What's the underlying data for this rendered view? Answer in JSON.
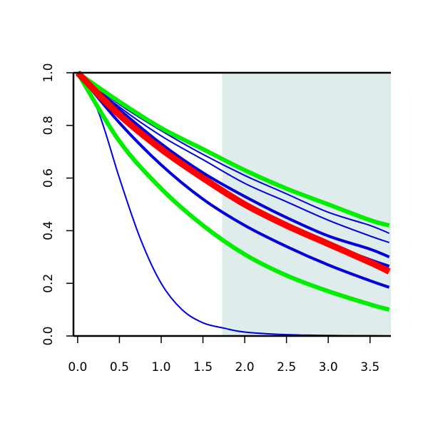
{
  "chart_data": {
    "type": "line",
    "title": "",
    "xlabel": "",
    "ylabel": "",
    "xlim": [
      -0.05,
      3.75
    ],
    "ylim": [
      0.0,
      1.0
    ],
    "x_ticks": [
      0.0,
      0.5,
      1.0,
      1.5,
      2.0,
      2.5,
      3.0,
      3.5
    ],
    "x_tick_labels": [
      "0.0",
      "0.5",
      "1.0",
      "1.5",
      "2.0",
      "2.5",
      "3.0",
      "3.5"
    ],
    "y_ticks": [
      0.0,
      0.2,
      0.4,
      0.6,
      0.8,
      1.0
    ],
    "y_tick_labels": [
      "0.0",
      "0.2",
      "0.4",
      "0.6",
      "0.8",
      "1.0"
    ],
    "shaded_region": {
      "x_start": 1.73,
      "x_end": 3.75,
      "color": "#deeceb"
    },
    "grid": false,
    "legend": "none",
    "series": [
      {
        "color": "#0000dd",
        "width": 2,
        "x": [
          0.0,
          0.25,
          0.5,
          0.75,
          1.0,
          1.25,
          1.5,
          1.75,
          2.0,
          2.5,
          3.0,
          3.5,
          3.73
        ],
        "y": [
          1.0,
          0.85,
          0.6,
          0.37,
          0.2,
          0.1,
          0.05,
          0.03,
          0.015,
          0.005,
          0.002,
          0.001,
          0.0
        ]
      },
      {
        "color": "#0000dd",
        "width": 2,
        "x": [
          0.0,
          0.5,
          1.0,
          1.5,
          2.0,
          2.5,
          3.0,
          3.5,
          3.73
        ],
        "y": [
          1.0,
          0.88,
          0.78,
          0.69,
          0.61,
          0.54,
          0.47,
          0.42,
          0.39
        ]
      },
      {
        "color": "#0000dd",
        "width": 2,
        "x": [
          0.0,
          0.5,
          1.0,
          1.5,
          2.0,
          2.5,
          3.0,
          3.5,
          3.73
        ],
        "y": [
          1.0,
          0.87,
          0.76,
          0.67,
          0.58,
          0.51,
          0.44,
          0.38,
          0.355
        ]
      },
      {
        "color": "#0000dd",
        "width": 4,
        "x": [
          0.0,
          0.5,
          1.0,
          1.5,
          2.0,
          2.5,
          3.0,
          3.5,
          3.73
        ],
        "y": [
          1.0,
          0.86,
          0.73,
          0.62,
          0.53,
          0.45,
          0.38,
          0.33,
          0.3
        ]
      },
      {
        "color": "#0000dd",
        "width": 4,
        "x": [
          0.0,
          0.5,
          1.0,
          1.5,
          2.0,
          2.5,
          3.0,
          3.5,
          3.73
        ],
        "y": [
          1.0,
          0.85,
          0.71,
          0.6,
          0.5,
          0.42,
          0.35,
          0.29,
          0.265
        ]
      },
      {
        "color": "#0000dd",
        "width": 4,
        "x": [
          0.0,
          0.5,
          1.0,
          1.5,
          2.0,
          2.5,
          3.0,
          3.5,
          3.73
        ],
        "y": [
          1.0,
          0.81,
          0.65,
          0.52,
          0.42,
          0.34,
          0.27,
          0.21,
          0.185
        ]
      },
      {
        "color": "#00ee00",
        "width": 6,
        "x": [
          0.0,
          0.5,
          1.0,
          1.5,
          2.0,
          2.5,
          3.0,
          3.5,
          3.73
        ],
        "y": [
          1.0,
          0.89,
          0.79,
          0.71,
          0.63,
          0.56,
          0.5,
          0.44,
          0.42
        ]
      },
      {
        "color": "#00ee00",
        "width": 6,
        "x": [
          0.0,
          0.5,
          1.0,
          1.5,
          2.0,
          2.5,
          3.0,
          3.5,
          3.73
        ],
        "y": [
          1.0,
          0.74,
          0.56,
          0.42,
          0.31,
          0.23,
          0.17,
          0.12,
          0.1
        ]
      },
      {
        "color": "#ff0000",
        "width": 9,
        "x": [
          0.0,
          0.5,
          1.0,
          1.5,
          2.0,
          2.5,
          3.0,
          3.5,
          3.73
        ],
        "y": [
          1.0,
          0.84,
          0.71,
          0.6,
          0.5,
          0.42,
          0.35,
          0.28,
          0.245
        ]
      }
    ]
  }
}
